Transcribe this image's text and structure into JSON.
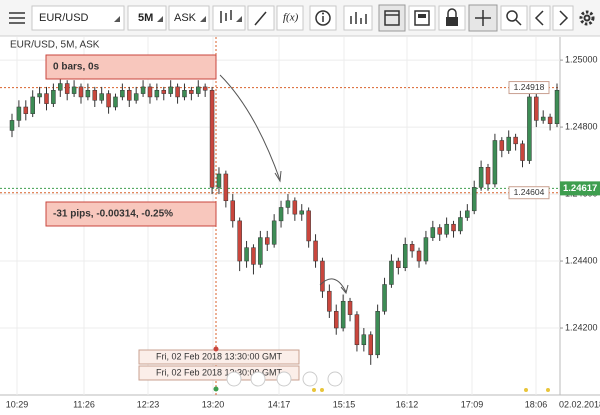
{
  "toolbar": {
    "symbol": "EUR/USD",
    "period": "5M",
    "side": "ASK",
    "function_label": "f(x)"
  },
  "chart_data": {
    "type": "candlestick",
    "title": "EUR/USD, 5M, ASK",
    "up_color": "#3d8c55",
    "down_color": "#c9463d",
    "ylim": [
      1.24,
      1.25069
    ],
    "yticks": [
      {
        "value": 1.25,
        "label": "1.25000"
      },
      {
        "value": 1.248,
        "label": "1.24800"
      },
      {
        "value": 1.246,
        "label": "1.24600"
      },
      {
        "value": 1.244,
        "label": "1.24400"
      },
      {
        "value": 1.242,
        "label": "1.24200"
      }
    ],
    "xtick_labels": [
      "10:29",
      "11:26",
      "12:23",
      "13:20",
      "14:17",
      "15:15",
      "16:12",
      "17:09",
      "18:06"
    ],
    "date_label": "02.02.2018",
    "grid": true,
    "candles": [
      [
        1.2479,
        1.2484,
        1.2477,
        1.2482
      ],
      [
        1.2482,
        1.2488,
        1.248,
        1.2486
      ],
      [
        1.2486,
        1.2488,
        1.2482,
        1.2484
      ],
      [
        1.2484,
        1.2491,
        1.2483,
        1.2489
      ],
      [
        1.2489,
        1.2492,
        1.2487,
        1.249
      ],
      [
        1.249,
        1.2492,
        1.2485,
        1.2487
      ],
      [
        1.2487,
        1.2493,
        1.2486,
        1.2491
      ],
      [
        1.2491,
        1.2495,
        1.2489,
        1.2493
      ],
      [
        1.2493,
        1.2494,
        1.2488,
        1.249
      ],
      [
        1.249,
        1.2494,
        1.2489,
        1.2492
      ],
      [
        1.2492,
        1.2493,
        1.2487,
        1.2489
      ],
      [
        1.2489,
        1.2493,
        1.2488,
        1.2491
      ],
      [
        1.2491,
        1.2492,
        1.2486,
        1.2488
      ],
      [
        1.2488,
        1.2492,
        1.2487,
        1.249
      ],
      [
        1.249,
        1.2491,
        1.2484,
        1.2486
      ],
      [
        1.2486,
        1.249,
        1.2485,
        1.2489
      ],
      [
        1.2489,
        1.2493,
        1.2488,
        1.2491
      ],
      [
        1.2491,
        1.2492,
        1.2486,
        1.2488
      ],
      [
        1.2488,
        1.2492,
        1.2487,
        1.249
      ],
      [
        1.249,
        1.2494,
        1.2489,
        1.2492
      ],
      [
        1.2492,
        1.2493,
        1.2487,
        1.2489
      ],
      [
        1.2489,
        1.2493,
        1.2488,
        1.2491
      ],
      [
        1.2491,
        1.2492,
        1.2488,
        1.249
      ],
      [
        1.249,
        1.2494,
        1.2489,
        1.2492
      ],
      [
        1.2492,
        1.2493,
        1.2487,
        1.2489
      ],
      [
        1.2489,
        1.2493,
        1.2488,
        1.2491
      ],
      [
        1.2491,
        1.2492,
        1.2488,
        1.249
      ],
      [
        1.249,
        1.2494,
        1.2489,
        1.2492
      ],
      [
        1.2492,
        1.2493,
        1.2489,
        1.2491
      ],
      [
        1.2491,
        1.2492,
        1.246,
        1.2462
      ],
      [
        1.2462,
        1.2468,
        1.246,
        1.2466
      ],
      [
        1.2466,
        1.2467,
        1.2456,
        1.2458
      ],
      [
        1.2458,
        1.246,
        1.245,
        1.2452
      ],
      [
        1.2452,
        1.2453,
        1.2437,
        1.244
      ],
      [
        1.244,
        1.2446,
        1.2438,
        1.2444
      ],
      [
        1.2444,
        1.2445,
        1.2436,
        1.2439
      ],
      [
        1.2439,
        1.2449,
        1.2438,
        1.2447
      ],
      [
        1.2447,
        1.2449,
        1.2443,
        1.2445
      ],
      [
        1.2445,
        1.2454,
        1.2444,
        1.2452
      ],
      [
        1.2452,
        1.2458,
        1.245,
        1.2456
      ],
      [
        1.2456,
        1.246,
        1.2454,
        1.2458
      ],
      [
        1.2458,
        1.2459,
        1.2452,
        1.2454
      ],
      [
        1.2454,
        1.2457,
        1.2452,
        1.2455
      ],
      [
        1.2455,
        1.2456,
        1.2444,
        1.2446
      ],
      [
        1.2446,
        1.2448,
        1.2438,
        1.244
      ],
      [
        1.244,
        1.2441,
        1.2429,
        1.2431
      ],
      [
        1.2431,
        1.2433,
        1.2423,
        1.2425
      ],
      [
        1.2425,
        1.2427,
        1.2418,
        1.242
      ],
      [
        1.242,
        1.243,
        1.2419,
        1.2428
      ],
      [
        1.2428,
        1.2429,
        1.2422,
        1.2424
      ],
      [
        1.2424,
        1.2425,
        1.2413,
        1.2415
      ],
      [
        1.2415,
        1.242,
        1.2413,
        1.2418
      ],
      [
        1.2418,
        1.2419,
        1.2409,
        1.2412
      ],
      [
        1.2412,
        1.2427,
        1.2411,
        1.2425
      ],
      [
        1.2425,
        1.2435,
        1.2424,
        1.2433
      ],
      [
        1.2433,
        1.2442,
        1.2432,
        1.244
      ],
      [
        1.244,
        1.2441,
        1.2436,
        1.2438
      ],
      [
        1.2438,
        1.2447,
        1.2437,
        1.2445
      ],
      [
        1.2445,
        1.2446,
        1.2441,
        1.2443
      ],
      [
        1.2443,
        1.2444,
        1.2438,
        1.244
      ],
      [
        1.244,
        1.2449,
        1.2439,
        1.2447
      ],
      [
        1.2447,
        1.2452,
        1.2446,
        1.245
      ],
      [
        1.245,
        1.2451,
        1.2446,
        1.2448
      ],
      [
        1.2448,
        1.2453,
        1.2447,
        1.2451
      ],
      [
        1.2451,
        1.2452,
        1.2447,
        1.2449
      ],
      [
        1.2449,
        1.2455,
        1.2448,
        1.2453
      ],
      [
        1.2453,
        1.2457,
        1.2452,
        1.2455
      ],
      [
        1.2455,
        1.2464,
        1.2454,
        1.2462
      ],
      [
        1.2462,
        1.247,
        1.2461,
        1.2468
      ],
      [
        1.2468,
        1.2469,
        1.2461,
        1.2463
      ],
      [
        1.2463,
        1.2478,
        1.2462,
        1.2476
      ],
      [
        1.2476,
        1.2477,
        1.2471,
        1.2473
      ],
      [
        1.2473,
        1.2479,
        1.2472,
        1.2477
      ],
      [
        1.2477,
        1.2478,
        1.2473,
        1.2475
      ],
      [
        1.2475,
        1.2476,
        1.2468,
        1.247
      ],
      [
        1.247,
        1.2491,
        1.2469,
        1.2489
      ],
      [
        1.2489,
        1.249,
        1.248,
        1.2482
      ],
      [
        1.2482,
        1.2485,
        1.2481,
        1.2483
      ],
      [
        1.2483,
        1.2484,
        1.2479,
        1.2481
      ],
      [
        1.2481,
        1.2493,
        1.248,
        1.2491
      ]
    ],
    "price_lines": [
      {
        "value": 1.24918,
        "color": "#d9622b",
        "tag": "inside"
      },
      {
        "value": 1.24604,
        "color": "#d9622b",
        "tag": "inside"
      },
      {
        "value": 1.24617,
        "color": "#3e9e4f",
        "tag": "axis"
      }
    ],
    "measure": {
      "bars_label": "0 bars, 0s",
      "change_label": "-31 pips, -0.00314, -0.25%"
    },
    "time_tooltips": [
      "Fri, 02 Feb 2018 13:30:00 GMT",
      "Fri, 02 Feb 2018 13:30:00 GMT"
    ]
  }
}
